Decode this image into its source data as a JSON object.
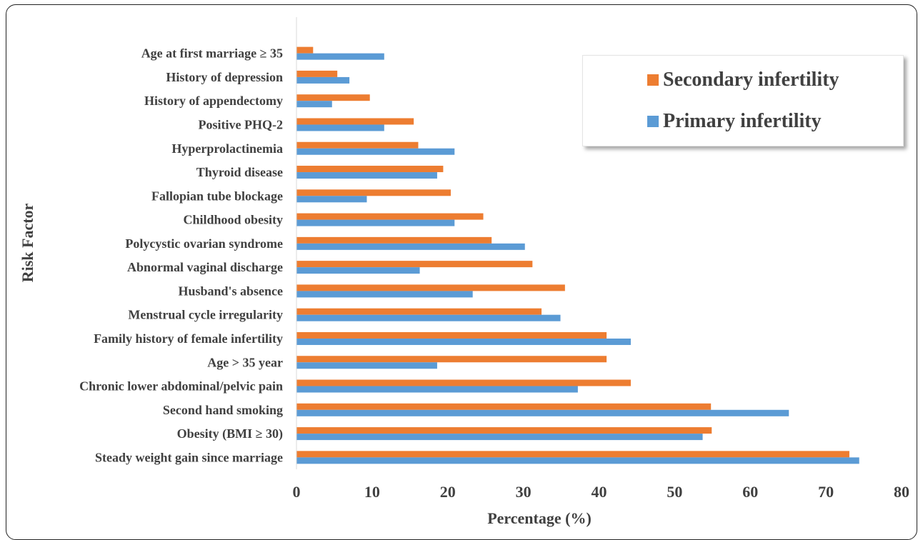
{
  "chart_data": {
    "type": "bar",
    "orientation": "horizontal",
    "xlabel": "Percentage (%)",
    "ylabel": "Risk Factor",
    "xlim": [
      0,
      80
    ],
    "xticks": [
      0,
      10,
      20,
      30,
      40,
      50,
      60,
      70,
      80
    ],
    "grid": false,
    "legend_position": "top-right",
    "categories": [
      "Steady weight gain since marriage",
      "Obesity (BMI ≥ 30)",
      "Second hand smoking",
      "Chronic lower abdominal/pelvic pain",
      "Age > 35 year",
      "Family history of female infertility",
      "Menstrual cycle irregularity",
      "Husband's absence",
      "Abnormal vaginal discharge",
      "Polycystic ovarian syndrome",
      "Childhood obesity",
      "Fallopian tube blockage",
      "Thyroid disease",
      "Hyperprolactinemia",
      "Positive PHQ-2",
      "History of appendectomy",
      "History of depression",
      "Age at first marriage ≥ 35"
    ],
    "series": [
      {
        "name": "Secondary infertility",
        "color": "#ED7D31",
        "values": [
          73.1,
          54.9,
          54.8,
          44.2,
          41.0,
          41.0,
          32.4,
          35.5,
          31.2,
          25.8,
          24.7,
          20.4,
          19.4,
          16.1,
          15.5,
          9.7,
          5.4,
          2.2
        ]
      },
      {
        "name": "Primary infertility",
        "color": "#5B9BD5",
        "values": [
          74.4,
          53.7,
          65.1,
          37.2,
          18.6,
          44.2,
          34.9,
          23.3,
          16.3,
          30.2,
          20.9,
          9.3,
          18.6,
          20.9,
          11.6,
          4.7,
          7.0,
          11.6
        ]
      }
    ]
  }
}
